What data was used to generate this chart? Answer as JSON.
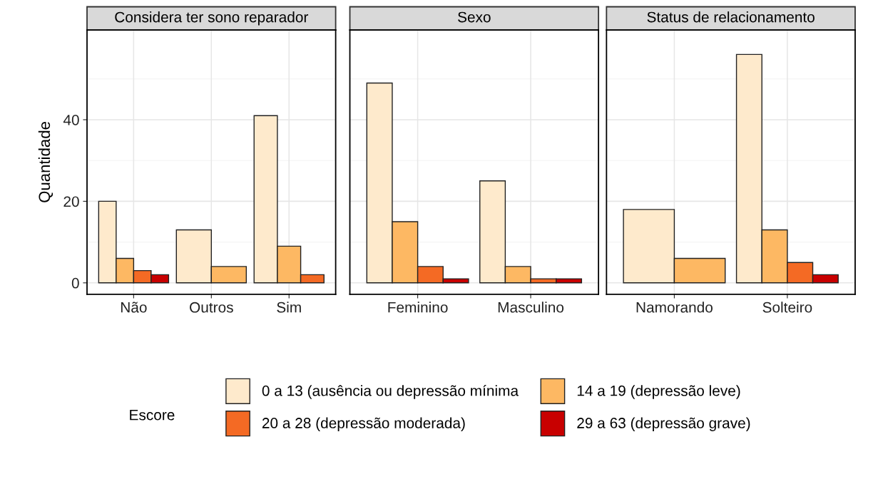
{
  "chart_data": [
    {
      "type": "bar",
      "title": "Considera ter sono reparador",
      "ylabel": "Quantidade",
      "categories": [
        "Não",
        "Outros",
        "Sim"
      ],
      "ylim": [
        -2.8,
        62
      ],
      "yticks": [
        0,
        20,
        40
      ],
      "grid": true,
      "legend": "bottom",
      "legend_title": "Escore",
      "series": [
        {
          "name": "0 a 13 (ausência ou depressão mínima",
          "color": "#feeacc",
          "values": [
            20,
            13,
            41
          ]
        },
        {
          "name": "14 a 19 (depressão leve)",
          "color": "#fdb863",
          "values": [
            6,
            4,
            9
          ]
        },
        {
          "name": "20 a 28 (depressão moderada)",
          "color": "#f46a24",
          "values": [
            3,
            null,
            2
          ]
        },
        {
          "name": "29 a 63 (depressão grave)",
          "color": "#c80000",
          "values": [
            2,
            null,
            null
          ]
        }
      ]
    },
    {
      "type": "bar",
      "title": "Sexo",
      "categories": [
        "Feminino",
        "Masculino"
      ],
      "ylim": [
        -2.8,
        62
      ],
      "yticks": [
        0,
        20,
        40
      ],
      "grid": true,
      "tick_labels": "x",
      "series": [
        {
          "color": "#feeacc",
          "values": [
            49,
            25
          ]
        },
        {
          "color": "#fdb863",
          "values": [
            15,
            4
          ]
        },
        {
          "color": "#f46a24",
          "values": [
            4,
            1
          ]
        },
        {
          "color": "#c80000",
          "values": [
            1,
            1
          ]
        }
      ]
    },
    {
      "type": "bar",
      "title": "Status de relacionamento",
      "categories": [
        "Namorando",
        "Solteiro"
      ],
      "ylim": [
        -2.8,
        62
      ],
      "yticks": [
        0,
        20,
        40
      ],
      "grid": true,
      "tick_labels": "x",
      "series": [
        {
          "color": "#feeacc",
          "values": [
            18,
            56
          ]
        },
        {
          "color": "#fdb863",
          "values": [
            6,
            13
          ]
        },
        {
          "color": "#f46a24",
          "values": [
            null,
            5
          ]
        },
        {
          "color": "#c80000",
          "values": [
            null,
            2
          ]
        }
      ]
    }
  ]
}
